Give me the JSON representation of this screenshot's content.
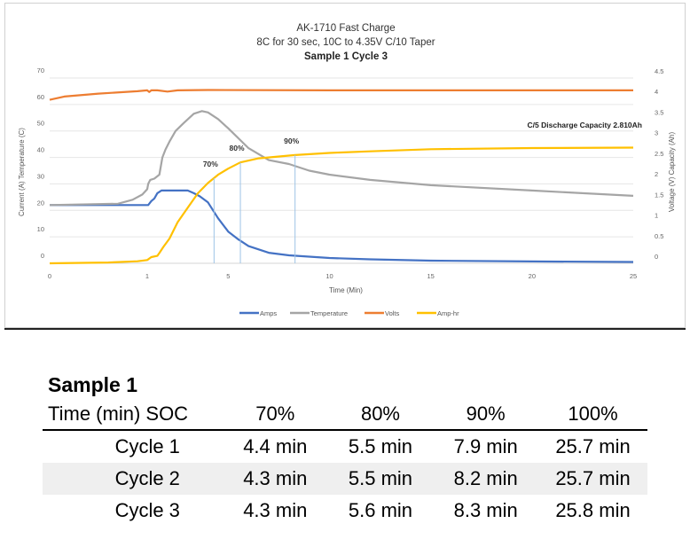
{
  "chart_data": {
    "type": "line",
    "title_lines": [
      "AK-1710 Fast Charge",
      "8C for 30 sec, 10C to 4.35V C/10 Taper"
    ],
    "title_bold": "Sample 1 Cycle 3",
    "xlabel": "Time (Min)",
    "ylabel_left": "Current (A) Temperature (C)",
    "ylabel_right": "Voltage (V) Capacity (Ah)",
    "xlim": [
      0,
      25
    ],
    "ylim_left": [
      0,
      70
    ],
    "ylim_right": [
      0,
      4.5
    ],
    "x_ticks": [
      "0",
      "1",
      "5",
      "10",
      "15",
      "20",
      "25"
    ],
    "x_tick_values": [
      0,
      1,
      5,
      10,
      15,
      20,
      25
    ],
    "y_ticks_left": [
      "0",
      "10",
      "20",
      "30",
      "40",
      "50",
      "60",
      "70"
    ],
    "y_ticks_right": [
      "0",
      "0.5",
      "1",
      "1.5",
      "2",
      "2.5",
      "3",
      "3.5",
      "4",
      "4.5"
    ],
    "grid": true,
    "legend_position": "bottom",
    "annotation_capacity": "C/5 Discharge Capacity 2.810Ah",
    "markers": [
      {
        "label": "70%",
        "x": 4.3
      },
      {
        "label": "80%",
        "x": 5.6
      },
      {
        "label": "90%",
        "x": 8.3
      }
    ],
    "series": [
      {
        "name": "Amps",
        "axis": "left",
        "color": "#4472c4",
        "points": [
          [
            0,
            22
          ],
          [
            0.5,
            22
          ],
          [
            0.9,
            22
          ],
          [
            1.0,
            22
          ],
          [
            1.05,
            22
          ],
          [
            1.2,
            23.5
          ],
          [
            1.35,
            24.5
          ],
          [
            1.5,
            26.5
          ],
          [
            1.7,
            27.5
          ],
          [
            2.5,
            27.5
          ],
          [
            3.0,
            27.5
          ],
          [
            3.3,
            26.5
          ],
          [
            3.6,
            25.3
          ],
          [
            4.0,
            23
          ],
          [
            4.5,
            17
          ],
          [
            5.0,
            12
          ],
          [
            5.5,
            9
          ],
          [
            6.0,
            6.5
          ],
          [
            7.0,
            4
          ],
          [
            8.0,
            3
          ],
          [
            10,
            2
          ],
          [
            12,
            1.5
          ],
          [
            15,
            1
          ],
          [
            20,
            0.7
          ],
          [
            25,
            0.5
          ]
        ]
      },
      {
        "name": "Temperature",
        "axis": "left",
        "color": "#a5a5a5",
        "points": [
          [
            0,
            22
          ],
          [
            0.7,
            22.5
          ],
          [
            0.85,
            24
          ],
          [
            0.95,
            26
          ],
          [
            1.0,
            28
          ],
          [
            1.05,
            30
          ],
          [
            1.15,
            31.5
          ],
          [
            1.35,
            32
          ],
          [
            1.6,
            33.5
          ],
          [
            1.75,
            40
          ],
          [
            1.9,
            43
          ],
          [
            2.1,
            46
          ],
          [
            2.4,
            50
          ],
          [
            2.8,
            53
          ],
          [
            3.3,
            56.5
          ],
          [
            3.7,
            57.5
          ],
          [
            4.0,
            57
          ],
          [
            4.5,
            54.5
          ],
          [
            5.0,
            51
          ],
          [
            6.0,
            43.5
          ],
          [
            7.0,
            39
          ],
          [
            8.0,
            37.5
          ],
          [
            9.0,
            35
          ],
          [
            10,
            33.5
          ],
          [
            12,
            31.5
          ],
          [
            15,
            29.5
          ],
          [
            20,
            27.5
          ],
          [
            25,
            25.5
          ]
        ]
      },
      {
        "name": "Volts",
        "axis": "right",
        "color": "#ed7d31",
        "points": [
          [
            0,
            3.97
          ],
          [
            0.15,
            4.05
          ],
          [
            0.5,
            4.12
          ],
          [
            0.9,
            4.18
          ],
          [
            1.0,
            4.2
          ],
          [
            1.1,
            4.16
          ],
          [
            1.2,
            4.2
          ],
          [
            1.5,
            4.2
          ],
          [
            2.0,
            4.17
          ],
          [
            2.5,
            4.2
          ],
          [
            4,
            4.21
          ],
          [
            10,
            4.2
          ],
          [
            15,
            4.2
          ],
          [
            25,
            4.2
          ]
        ]
      },
      {
        "name": "Amp-hr",
        "axis": "right",
        "color": "#ffc000",
        "points": [
          [
            0,
            0
          ],
          [
            0.6,
            0.02
          ],
          [
            0.9,
            0.05
          ],
          [
            1.0,
            0.08
          ],
          [
            1.2,
            0.15
          ],
          [
            1.5,
            0.18
          ],
          [
            1.6,
            0.25
          ],
          [
            1.8,
            0.4
          ],
          [
            2.1,
            0.6
          ],
          [
            2.5,
            1.0
          ],
          [
            3.0,
            1.35
          ],
          [
            3.5,
            1.7
          ],
          [
            4.0,
            1.95
          ],
          [
            4.5,
            2.15
          ],
          [
            5.0,
            2.3
          ],
          [
            5.6,
            2.45
          ],
          [
            6.5,
            2.55
          ],
          [
            8.3,
            2.63
          ],
          [
            10,
            2.68
          ],
          [
            12,
            2.72
          ],
          [
            15,
            2.77
          ],
          [
            20,
            2.8
          ],
          [
            25,
            2.81
          ]
        ]
      }
    ]
  },
  "table": {
    "title": "Sample 1",
    "headers": [
      "Time (min) SOC",
      "70%",
      "80%",
      "90%",
      "100%"
    ],
    "rows": [
      [
        "Cycle 1",
        "4.4 min",
        "5.5 min",
        "7.9 min",
        "25.7 min"
      ],
      [
        "Cycle 2",
        "4.3 min",
        "5.5 min",
        "8.2 min",
        "25.7 min"
      ],
      [
        "Cycle 3",
        "4.3 min",
        "5.6 min",
        "8.3 min",
        "25.8 min"
      ]
    ]
  }
}
